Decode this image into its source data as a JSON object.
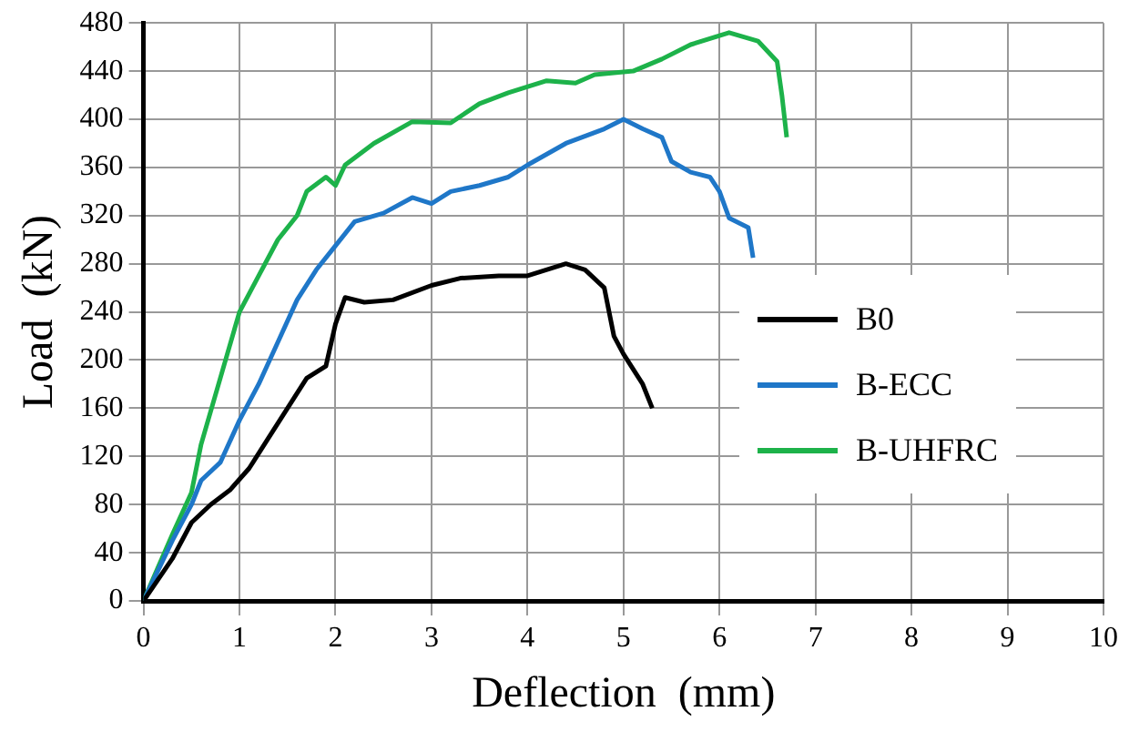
{
  "chart_data": {
    "type": "line",
    "xlabel": "Deflection  (mm)",
    "ylabel": "Load  (kN)",
    "xlim": [
      0,
      10
    ],
    "xticks": [
      0,
      1,
      2,
      3,
      4,
      5,
      6,
      7,
      8,
      9,
      10
    ],
    "ylim": [
      0,
      480
    ],
    "yticks": [
      0,
      40,
      80,
      120,
      160,
      200,
      240,
      280,
      320,
      360,
      400,
      440,
      480
    ],
    "grid": true,
    "legend": "right",
    "marker": "none",
    "line_style": "solid",
    "series": [
      {
        "name": "B0",
        "color": "#000000",
        "x": [
          0,
          0.3,
          0.5,
          0.7,
          0.9,
          1.1,
          1.3,
          1.5,
          1.7,
          1.9,
          2.0,
          2.1,
          2.3,
          2.6,
          3.0,
          3.3,
          3.7,
          4.0,
          4.4,
          4.6,
          4.8,
          4.9,
          5.0,
          5.2,
          5.3
        ],
        "values": [
          0,
          35,
          65,
          80,
          92,
          110,
          135,
          160,
          185,
          195,
          230,
          252,
          248,
          250,
          262,
          268,
          270,
          270,
          280,
          275,
          260,
          220,
          205,
          180,
          160
        ]
      },
      {
        "name": "B-ECC",
        "color": "#1f77c8",
        "x": [
          0,
          0.3,
          0.5,
          0.6,
          0.8,
          1.0,
          1.2,
          1.4,
          1.6,
          1.8,
          2.0,
          2.2,
          2.5,
          2.8,
          3.0,
          3.2,
          3.5,
          3.8,
          4.0,
          4.4,
          4.8,
          5.0,
          5.2,
          5.4,
          5.5,
          5.7,
          5.9,
          6.0,
          6.1,
          6.3,
          6.35
        ],
        "values": [
          0,
          50,
          80,
          100,
          115,
          150,
          180,
          215,
          250,
          275,
          295,
          315,
          322,
          335,
          330,
          340,
          345,
          352,
          362,
          380,
          392,
          400,
          392,
          385,
          365,
          356,
          352,
          340,
          318,
          310,
          285
        ]
      },
      {
        "name": "B-UHFRC",
        "color": "#1db24a",
        "x": [
          0,
          0.3,
          0.5,
          0.6,
          0.8,
          1.0,
          1.2,
          1.4,
          1.6,
          1.7,
          1.9,
          2.0,
          2.1,
          2.4,
          2.8,
          3.2,
          3.5,
          3.8,
          4.2,
          4.5,
          4.7,
          5.1,
          5.4,
          5.7,
          6.1,
          6.4,
          6.6,
          6.65,
          6.7
        ],
        "values": [
          0,
          55,
          90,
          130,
          185,
          240,
          270,
          300,
          320,
          340,
          352,
          345,
          362,
          380,
          398,
          397,
          413,
          422,
          432,
          430,
          437,
          440,
          450,
          462,
          472,
          465,
          448,
          420,
          385
        ]
      }
    ]
  }
}
